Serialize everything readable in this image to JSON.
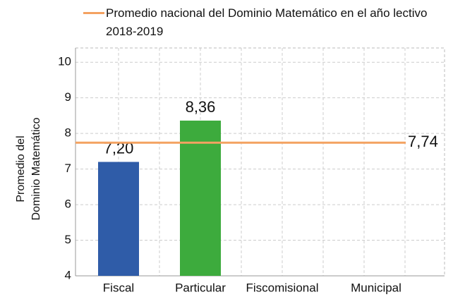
{
  "chart_data": {
    "type": "bar",
    "categories": [
      "Fiscal",
      "Particular",
      "Fiscomisional",
      "Municipal"
    ],
    "values": [
      7.2,
      8.36,
      null,
      null
    ],
    "value_labels": [
      "7,20",
      "8,36",
      null,
      null
    ],
    "colors": [
      "#2f5ca8",
      "#3dab3d",
      "#2f5ca8",
      "#2f5ca8"
    ],
    "ylabel": [
      "Promedio del",
      "Dominio Matemático"
    ],
    "ylim": [
      4,
      10.4
    ],
    "yticks": [
      4,
      5,
      6,
      7,
      8,
      9,
      10
    ],
    "grid": true,
    "reference_line": {
      "name": "Promedio nacional del Dominio Matemático en el año lectivo 2018-2019",
      "value": 7.74,
      "label": "7,74",
      "color": "#f4a261"
    }
  }
}
